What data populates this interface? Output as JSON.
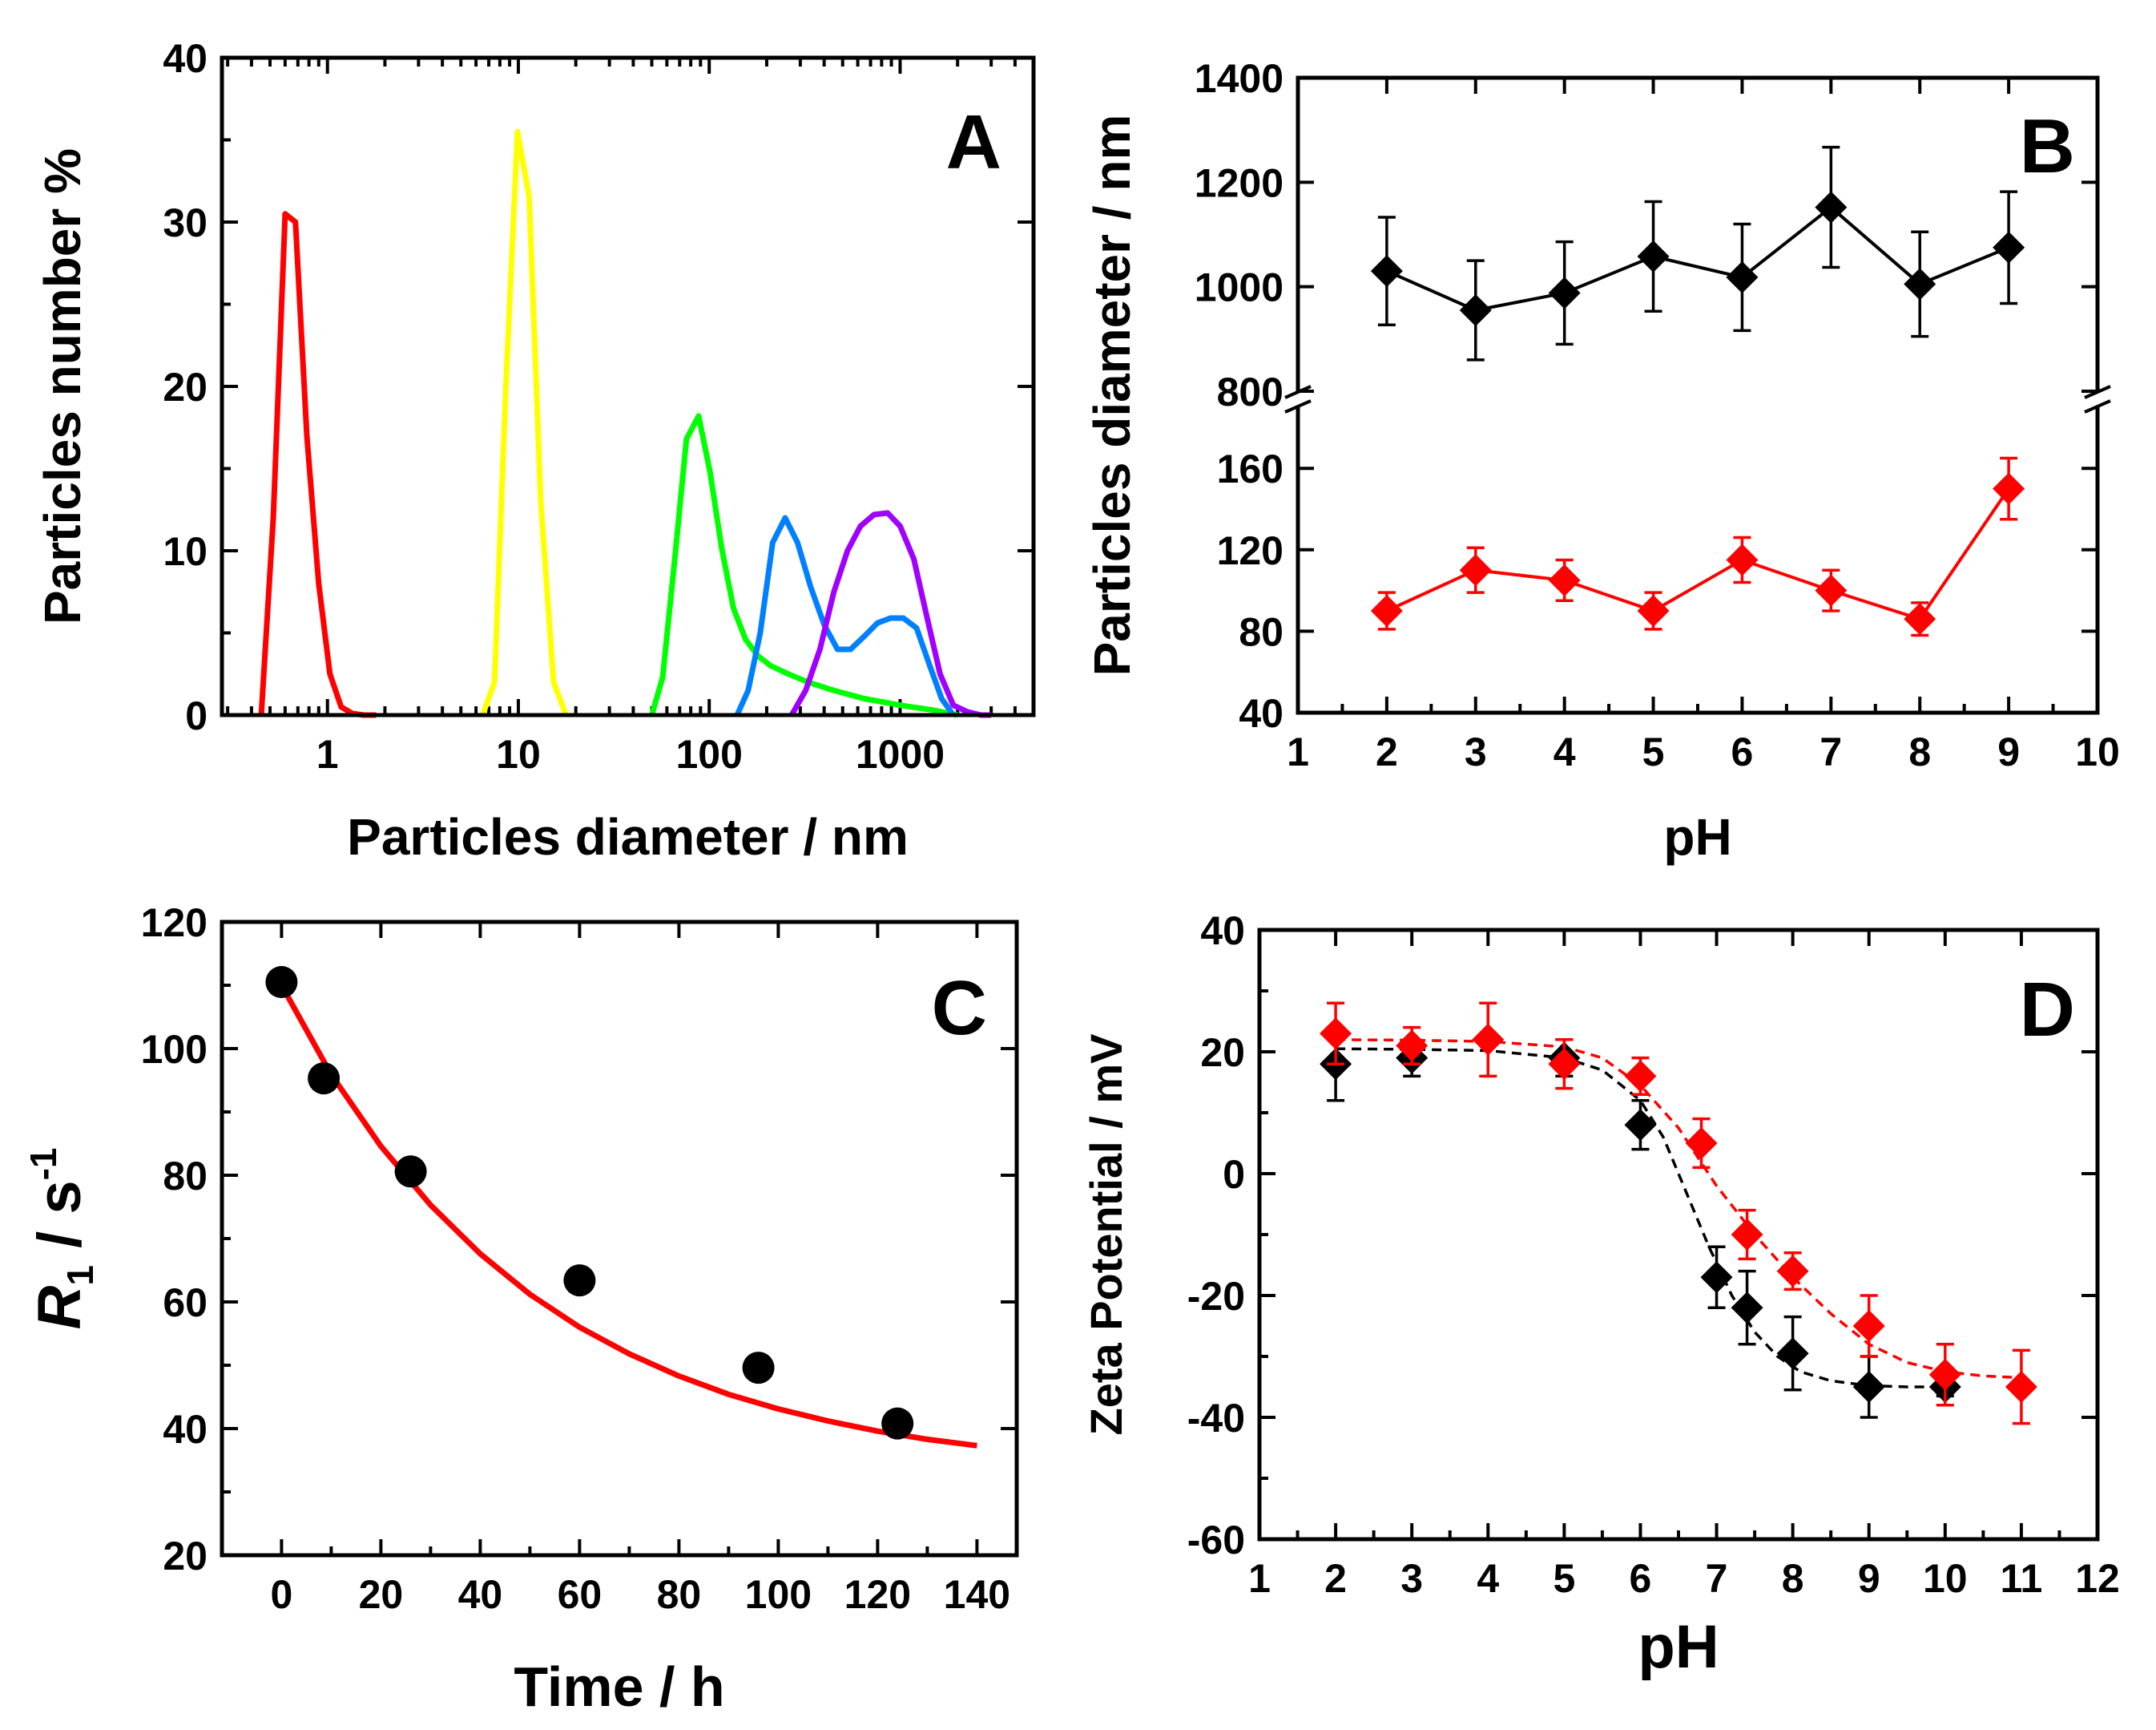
{
  "chart_data": [
    {
      "panel": "A",
      "type": "line",
      "xscale": "log",
      "xlabel": "Particles diameter / nm",
      "ylabel": "Particles number %",
      "xlim": [
        0.28,
        5000
      ],
      "ylim": [
        0,
        40
      ],
      "xticks": [
        1,
        10,
        100,
        1000
      ],
      "xtick_labels": [
        "1",
        "10",
        "100",
        "1000"
      ],
      "yticks": [
        0,
        10,
        20,
        30,
        40
      ],
      "ytick_labels": [
        "0",
        "10",
        "20",
        "30",
        "40"
      ],
      "series": [
        {
          "name": "red",
          "color": "#ff0000",
          "x": [
            0.45,
            0.52,
            0.6,
            0.68,
            0.78,
            0.9,
            1.03,
            1.18,
            1.35,
            1.55,
            1.8
          ],
          "y": [
            0,
            12,
            30.5,
            30,
            17,
            8,
            2.5,
            0.5,
            0.1,
            0,
            0
          ]
        },
        {
          "name": "yellow",
          "color": "#ffff00",
          "x": [
            6.5,
            7.5,
            8.6,
            9.9,
            11.4,
            13.1,
            15.3,
            17.8
          ],
          "y": [
            0,
            2,
            20,
            35.5,
            31.5,
            13,
            2,
            0
          ]
        },
        {
          "name": "green",
          "color": "#00ff00",
          "x": [
            50,
            57,
            66,
            76,
            88,
            101,
            116,
            134,
            155,
            180,
            210,
            260,
            330,
            450,
            650,
            1000,
            1500,
            2000
          ],
          "y": [
            0,
            2.3,
            9.5,
            16.8,
            18.2,
            14.8,
            10.2,
            6.5,
            4.6,
            3.6,
            3,
            2.5,
            2,
            1.5,
            1,
            0.6,
            0.3,
            0
          ]
        },
        {
          "name": "blue",
          "color": "#0080ff",
          "x": [
            140,
            160,
            185,
            215,
            250,
            290,
            340,
            400,
            470,
            550,
            650,
            760,
            890,
            1040,
            1220,
            1430,
            1650,
            1900
          ],
          "y": [
            0,
            1.5,
            5,
            10.5,
            12,
            10.5,
            7.8,
            5.5,
            4,
            4,
            4.8,
            5.6,
            5.9,
            5.9,
            5.3,
            3,
            1,
            0
          ]
        },
        {
          "name": "purple",
          "color": "#a000ff",
          "x": [
            270,
            320,
            380,
            450,
            530,
            620,
            730,
            860,
            1000,
            1180,
            1380,
            1620,
            1900,
            2250,
            2650,
            3000
          ],
          "y": [
            0,
            1.5,
            4,
            7.5,
            10,
            11.5,
            12.2,
            12.3,
            11.5,
            9.5,
            6,
            2.5,
            0.6,
            0.2,
            0,
            0
          ]
        }
      ]
    },
    {
      "panel": "B",
      "type": "line",
      "xlabel": "pH",
      "ylabel": "Particles diameter / nm",
      "xlim": [
        1,
        10
      ],
      "xticks": [
        1,
        2,
        3,
        4,
        5,
        6,
        7,
        8,
        9,
        10
      ],
      "xtick_labels": [
        "1",
        "2",
        "3",
        "4",
        "5",
        "6",
        "7",
        "8",
        "9",
        "10"
      ],
      "axis_break": true,
      "upper_ylim": [
        800,
        1400
      ],
      "upper_yticks": [
        800,
        1000,
        1200,
        1400
      ],
      "upper_ytick_labels": [
        "800",
        "1000",
        "1200",
        "1400"
      ],
      "lower_ylim": [
        40,
        190
      ],
      "lower_yticks": [
        40,
        80,
        120,
        160
      ],
      "lower_ytick_labels": [
        "40",
        "80",
        "120",
        "160"
      ],
      "series": [
        {
          "name": "black",
          "color": "#000000",
          "segment": "upper",
          "x": [
            2,
            3,
            4,
            5,
            6,
            7,
            8,
            9
          ],
          "y": [
            1030,
            955,
            988,
            1058,
            1018,
            1152,
            1005,
            1075
          ],
          "err": [
            103,
            95,
            98,
            105,
            102,
            115,
            100,
            107
          ]
        },
        {
          "name": "red",
          "color": "#ff0000",
          "segment": "lower",
          "x": [
            2,
            3,
            4,
            5,
            6,
            7,
            8,
            9
          ],
          "y": [
            90,
            110,
            105,
            90,
            115,
            100,
            86,
            150
          ],
          "err": [
            9,
            11,
            10,
            9,
            11,
            10,
            8,
            15
          ]
        }
      ]
    },
    {
      "panel": "C",
      "type": "scatter",
      "xlabel": "Time / h",
      "ylabel_main": "R",
      "ylabel_sub": "1",
      "ylabel_rest": " / s",
      "ylabel_sup": "-1",
      "xlim": [
        -12,
        148
      ],
      "ylim": [
        20,
        120
      ],
      "xticks": [
        0,
        20,
        40,
        60,
        80,
        100,
        120,
        140
      ],
      "xtick_labels": [
        "0",
        "20",
        "40",
        "60",
        "80",
        "100",
        "120",
        "140"
      ],
      "yticks": [
        20,
        40,
        60,
        80,
        100,
        120
      ],
      "ytick_labels": [
        "20",
        "40",
        "60",
        "80",
        "100",
        "120"
      ],
      "points": {
        "x": [
          0,
          8.5,
          26,
          60,
          96,
          124
        ],
        "y": [
          110.5,
          95.3,
          80.6,
          63.4,
          49.6,
          40.8
        ],
        "color": "#000000"
      },
      "fit": {
        "color": "#ff0000",
        "x": [
          0,
          10,
          20,
          30,
          40,
          50,
          60,
          70,
          80,
          90,
          100,
          110,
          120,
          130,
          140
        ],
        "y": [
          110,
          95.9,
          84.6,
          75.3,
          67.6,
          61.2,
          56.0,
          51.8,
          48.3,
          45.4,
          43.1,
          41.2,
          39.6,
          38.3,
          37.3
        ]
      }
    },
    {
      "panel": "D",
      "type": "scatter",
      "xlabel": "pH",
      "ylabel": "Zeta Potential / mV",
      "xlim": [
        1,
        12
      ],
      "ylim": [
        -60,
        40
      ],
      "xticks": [
        1,
        2,
        3,
        4,
        5,
        6,
        7,
        8,
        9,
        10,
        11,
        12
      ],
      "xtick_labels": [
        "1",
        "2",
        "3",
        "4",
        "5",
        "6",
        "7",
        "8",
        "9",
        "10",
        "11",
        "12"
      ],
      "yticks": [
        -60,
        -40,
        -20,
        0,
        20,
        40
      ],
      "ytick_labels": [
        "-60",
        "-40",
        "-20",
        "0",
        "20",
        "40"
      ],
      "series": [
        {
          "name": "black",
          "color": "#000000",
          "x": [
            2,
            3,
            5,
            6,
            7,
            7.4,
            8,
            9,
            10
          ],
          "y": [
            18,
            19,
            19,
            8,
            -17,
            -22,
            -29.5,
            -35,
            -35
          ],
          "err": [
            6,
            3,
            3,
            4,
            5,
            6,
            6,
            5,
            1.5
          ],
          "fit_x": [
            2,
            3,
            4,
            5,
            5.5,
            6,
            6.3,
            6.6,
            6.9,
            7.2,
            7.5,
            7.8,
            8.1,
            8.5,
            9,
            9.5,
            10
          ],
          "fit_y": [
            20.5,
            20.4,
            20.2,
            19,
            17,
            12,
            6,
            -3,
            -12,
            -20,
            -26,
            -30,
            -32.5,
            -34,
            -34.8,
            -35,
            -35
          ]
        },
        {
          "name": "red",
          "color": "#ff0000",
          "x": [
            2,
            3,
            4,
            5,
            6,
            6.8,
            7.4,
            8,
            9,
            10,
            11
          ],
          "y": [
            23,
            21,
            22,
            18,
            16,
            5,
            -10,
            -16,
            -25,
            -33,
            -35
          ],
          "err": [
            5,
            3,
            6,
            4,
            3,
            4,
            4,
            3,
            5,
            5,
            6
          ],
          "fit_x": [
            2,
            3,
            4,
            5,
            5.5,
            6,
            6.5,
            7,
            7.5,
            8,
            8.5,
            9,
            9.5,
            10,
            10.5,
            11
          ],
          "fit_y": [
            22,
            21.9,
            21.7,
            20.8,
            19,
            14.5,
            7.5,
            -2,
            -10,
            -17,
            -23,
            -28,
            -31,
            -32.5,
            -33.2,
            -33.5
          ]
        }
      ]
    }
  ],
  "panel_letters": {
    "A": "A",
    "B": "B",
    "C": "C",
    "D": "D"
  }
}
